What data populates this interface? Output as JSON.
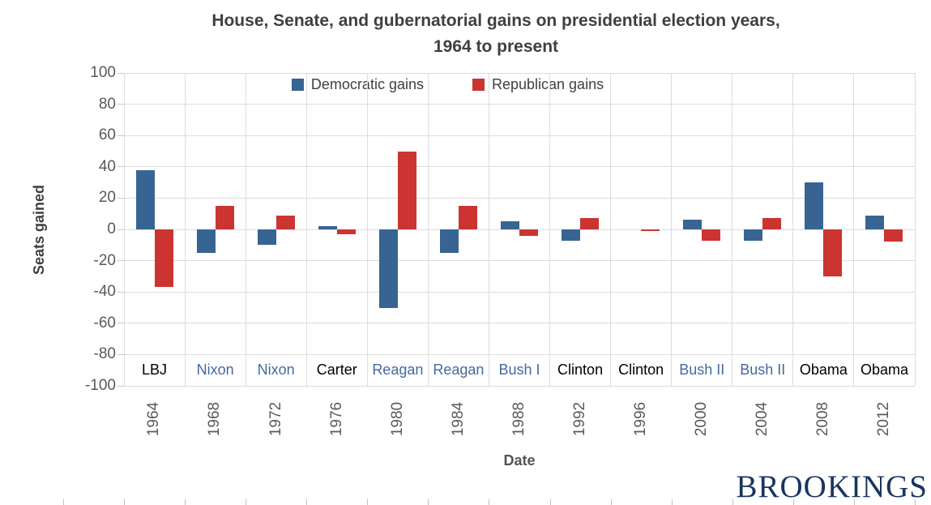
{
  "title": {
    "line1": "House, Senate, and gubernatorial gains on presidential election years,",
    "line2": "1964 to present"
  },
  "y_axis": {
    "label": "Seats gained",
    "min": -100,
    "max": 100,
    "step": 20,
    "ticks": [
      100,
      80,
      60,
      40,
      20,
      0,
      -20,
      -40,
      -60,
      -80,
      -100
    ]
  },
  "x_axis": {
    "label": "Date"
  },
  "branding": {
    "logo_text": "BROOKINGS"
  },
  "colors": {
    "democratic_bar": "#376492",
    "republican_bar": "#cb3431",
    "democratic_president_label": "#000000",
    "republican_president_label": "#44699e",
    "gridline": "#dcdcdc",
    "tick_text": "#595959",
    "title_text": "#3f3f3f",
    "logo_text": "#19355f"
  },
  "chart_data": {
    "type": "bar",
    "title": "House, Senate, and gubernatorial gains on presidential election years, 1964 to present",
    "xlabel": "Date",
    "ylabel": "Seats gained",
    "ylim": [
      -100,
      100
    ],
    "ytick_step": 20,
    "grid": true,
    "legend_position": "top",
    "categories": [
      "1964",
      "1968",
      "1972",
      "1976",
      "1980",
      "1984",
      "1988",
      "1992",
      "1996",
      "2000",
      "2004",
      "2008",
      "2012"
    ],
    "presidents": [
      {
        "name": "LBJ",
        "party": "D"
      },
      {
        "name": "Nixon",
        "party": "R"
      },
      {
        "name": "Nixon",
        "party": "R"
      },
      {
        "name": "Carter",
        "party": "D"
      },
      {
        "name": "Reagan",
        "party": "R"
      },
      {
        "name": "Reagan",
        "party": "R"
      },
      {
        "name": "Bush I",
        "party": "R"
      },
      {
        "name": "Clinton",
        "party": "D"
      },
      {
        "name": "Clinton",
        "party": "D"
      },
      {
        "name": "Bush II",
        "party": "R"
      },
      {
        "name": "Bush II",
        "party": "R"
      },
      {
        "name": "Obama",
        "party": "D"
      },
      {
        "name": "Obama",
        "party": "D"
      }
    ],
    "series": [
      {
        "name": "Democratic gains",
        "color": "#376492",
        "values": [
          38,
          -15,
          -10,
          2,
          -50,
          -15,
          5,
          -7,
          0,
          6,
          -7,
          30,
          9
        ]
      },
      {
        "name": "Republican gains",
        "color": "#cb3431",
        "values": [
          -37,
          15,
          9,
          -3,
          50,
          15,
          -4,
          7,
          -1,
          -7,
          7,
          -30,
          -8
        ]
      }
    ]
  }
}
